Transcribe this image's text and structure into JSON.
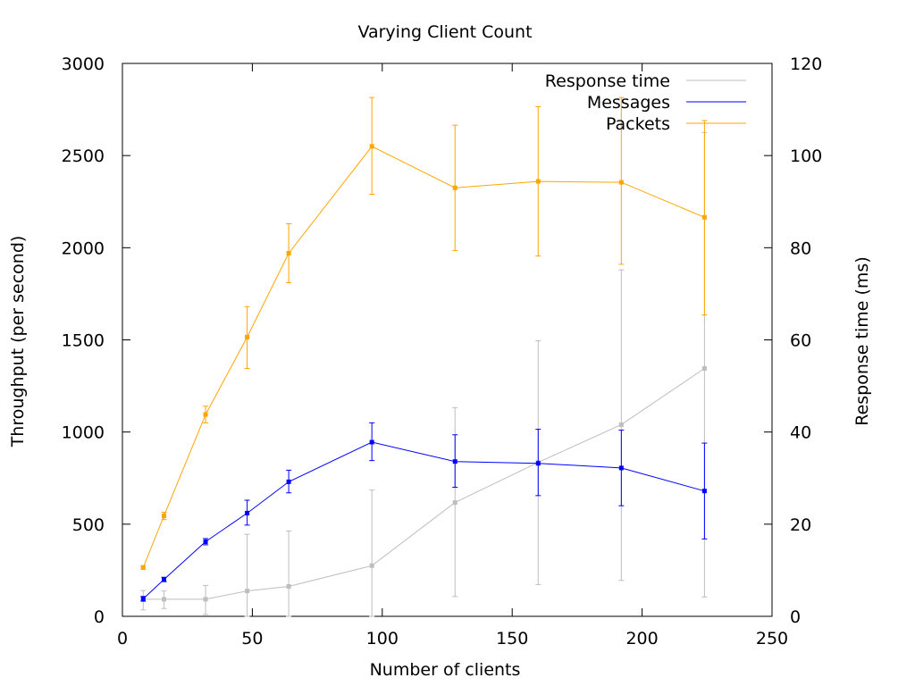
{
  "chart_data": {
    "type": "line",
    "title": "Varying Client Count",
    "xlabel": "Number of clients",
    "ylabel": "Throughput (per second)",
    "y2label": "Response time (ms)",
    "xlim": [
      0,
      250
    ],
    "ylim": [
      0,
      3000
    ],
    "y2lim": [
      0,
      120
    ],
    "x_ticks": [
      0,
      50,
      100,
      150,
      200,
      250
    ],
    "y_ticks": [
      0,
      500,
      1000,
      1500,
      2000,
      2500,
      3000
    ],
    "y2_ticks": [
      0,
      20,
      40,
      60,
      80,
      100,
      120
    ],
    "grid": false,
    "legend_position": "top-right",
    "x": [
      8,
      16,
      32,
      48,
      64,
      96,
      128,
      160,
      192,
      224
    ],
    "series": [
      {
        "name": "Response time",
        "axis": "y2",
        "color": "#bebebe",
        "values": [
          3.7,
          3.7,
          3.7,
          5.5,
          6.5,
          11.0,
          24.7,
          33.4,
          41.6,
          53.8
        ],
        "err_low": [
          1.4,
          1.7,
          0.4,
          0,
          0,
          0,
          4.3,
          6.9,
          7.8,
          4.2
        ],
        "err_high": [
          5.6,
          5.5,
          6.7,
          17.8,
          18.5,
          27.4,
          45.3,
          59.8,
          75.2,
          105.0
        ]
      },
      {
        "name": "Messages",
        "axis": "y",
        "color": "#0000ff",
        "values": [
          95,
          200,
          405,
          560,
          730,
          945,
          840,
          830,
          805,
          680
        ],
        "err_low": [
          82,
          188,
          388,
          495,
          670,
          845,
          700,
          655,
          600,
          420
        ],
        "err_high": [
          108,
          212,
          422,
          630,
          793,
          1050,
          985,
          1015,
          1010,
          940
        ]
      },
      {
        "name": "Packets",
        "axis": "y",
        "color": "#ffa500",
        "values": [
          265,
          545,
          1095,
          1515,
          1970,
          2550,
          2325,
          2360,
          2355,
          2165
        ],
        "err_low": [
          255,
          525,
          1050,
          1345,
          1810,
          2290,
          1985,
          1955,
          1910,
          1635
        ],
        "err_high": [
          275,
          565,
          1140,
          1680,
          2130,
          2815,
          2665,
          2765,
          2815,
          2690
        ]
      }
    ]
  }
}
